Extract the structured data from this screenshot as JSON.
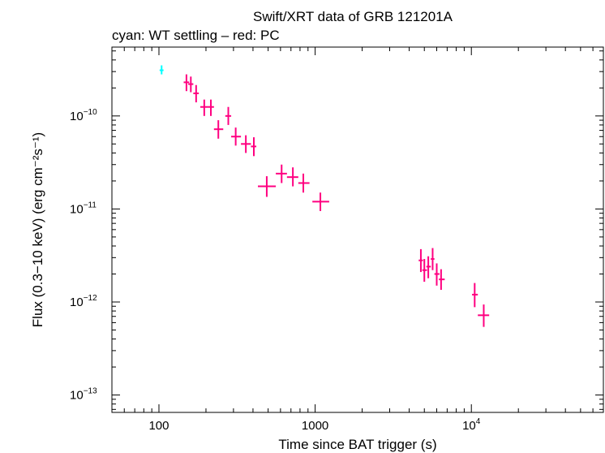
{
  "chart_data": {
    "type": "scatter",
    "title": "Swift/XRT data of GRB 121201A",
    "subtitle": "cyan: WT settling – red: PC",
    "xlabel": "Time since BAT trigger (s)",
    "ylabel": "Flux (0.3−10 keV) (erg cm⁻²s⁻¹)",
    "x_scale": "log",
    "y_scale": "log",
    "xlim": [
      50,
      70000
    ],
    "ylim": [
      6.5e-14,
      5.5e-10
    ],
    "x_ticks": [
      {
        "value": 100,
        "base": "100",
        "exp": ""
      },
      {
        "value": 1000,
        "base": "1000",
        "exp": ""
      },
      {
        "value": 10000,
        "base": "10",
        "exp": "4"
      }
    ],
    "y_ticks": [
      {
        "value": 1e-10,
        "base": "10",
        "exp": "−10"
      },
      {
        "value": 1e-11,
        "base": "10",
        "exp": "−11"
      },
      {
        "value": 1e-12,
        "base": "10",
        "exp": "−12"
      },
      {
        "value": 1e-13,
        "base": "10",
        "exp": "−13"
      }
    ],
    "grid": false,
    "series": [
      {
        "color": "#00ffff",
        "points": [
          {
            "x": 104,
            "xerr": [
              101,
              107
            ],
            "y": 3.1e-10,
            "yerr": [
              2.8e-10,
              3.5e-10
            ]
          }
        ]
      },
      {
        "color": "#ff0080",
        "points": [
          {
            "x": 150,
            "xerr": [
              144,
              156
            ],
            "y": 2.3e-10,
            "yerr": [
              1.85e-10,
              2.8e-10
            ]
          },
          {
            "x": 160,
            "xerr": [
              154,
              166
            ],
            "y": 2.2e-10,
            "yerr": [
              1.8e-10,
              2.65e-10
            ]
          },
          {
            "x": 173,
            "xerr": [
              166,
              180
            ],
            "y": 1.75e-10,
            "yerr": [
              1.4e-10,
              2.15e-10
            ]
          },
          {
            "x": 195,
            "xerr": [
              184,
              206
            ],
            "y": 1.25e-10,
            "yerr": [
              1e-10,
              1.5e-10
            ]
          },
          {
            "x": 215,
            "xerr": [
              206,
              225
            ],
            "y": 1.25e-10,
            "yerr": [
              1e-10,
              1.5e-10
            ]
          },
          {
            "x": 240,
            "xerr": [
              225,
              258
            ],
            "y": 7.2e-11,
            "yerr": [
              5.7e-11,
              9e-11
            ]
          },
          {
            "x": 278,
            "xerr": [
              266,
              290
            ],
            "y": 1e-10,
            "yerr": [
              8e-11,
              1.25e-10
            ]
          },
          {
            "x": 310,
            "xerr": [
              290,
              335
            ],
            "y": 6e-11,
            "yerr": [
              4.8e-11,
              7.5e-11
            ]
          },
          {
            "x": 360,
            "xerr": [
              335,
              388
            ],
            "y": 5e-11,
            "yerr": [
              4e-11,
              6.2e-11
            ]
          },
          {
            "x": 405,
            "xerr": [
              388,
              420
            ],
            "y": 4.7e-11,
            "yerr": [
              3.7e-11,
              5.9e-11
            ]
          },
          {
            "x": 490,
            "xerr": [
              430,
              560
            ],
            "y": 1.75e-11,
            "yerr": [
              1.35e-11,
              2.25e-11
            ]
          },
          {
            "x": 610,
            "xerr": [
              560,
              660
            ],
            "y": 2.4e-11,
            "yerr": [
              1.9e-11,
              3e-11
            ]
          },
          {
            "x": 720,
            "xerr": [
              660,
              780
            ],
            "y": 2.2e-11,
            "yerr": [
              1.75e-11,
              2.8e-11
            ]
          },
          {
            "x": 840,
            "xerr": [
              780,
              920
            ],
            "y": 1.9e-11,
            "yerr": [
              1.5e-11,
              2.4e-11
            ]
          },
          {
            "x": 1080,
            "xerr": [
              960,
              1230
            ],
            "y": 1.2e-11,
            "yerr": [
              9.5e-12,
              1.5e-11
            ]
          },
          {
            "x": 4750,
            "xerr": [
              4600,
              4900
            ],
            "y": 2.8e-12,
            "yerr": [
              2.1e-12,
              3.7e-12
            ]
          },
          {
            "x": 5000,
            "xerr": [
              4850,
              5200
            ],
            "y": 2.2e-12,
            "yerr": [
              1.65e-12,
              2.9e-12
            ]
          },
          {
            "x": 5300,
            "xerr": [
              5150,
              5500
            ],
            "y": 2.4e-12,
            "yerr": [
              1.8e-12,
              3.1e-12
            ]
          },
          {
            "x": 5650,
            "xerr": [
              5500,
              5800
            ],
            "y": 2.9e-12,
            "yerr": [
              2.2e-12,
              3.8e-12
            ]
          },
          {
            "x": 6000,
            "xerr": [
              5800,
              6250
            ],
            "y": 2e-12,
            "yerr": [
              1.5e-12,
              2.6e-12
            ]
          },
          {
            "x": 6400,
            "xerr": [
              6200,
              6750
            ],
            "y": 1.75e-12,
            "yerr": [
              1.35e-12,
              2.25e-12
            ]
          },
          {
            "x": 10500,
            "xerr": [
              10100,
              11000
            ],
            "y": 1.2e-12,
            "yerr": [
              8.8e-13,
              1.6e-12
            ]
          },
          {
            "x": 12000,
            "xerr": [
              11000,
              13000
            ],
            "y": 7.2e-13,
            "yerr": [
              5.4e-13,
              9.4e-13
            ]
          }
        ]
      }
    ]
  }
}
